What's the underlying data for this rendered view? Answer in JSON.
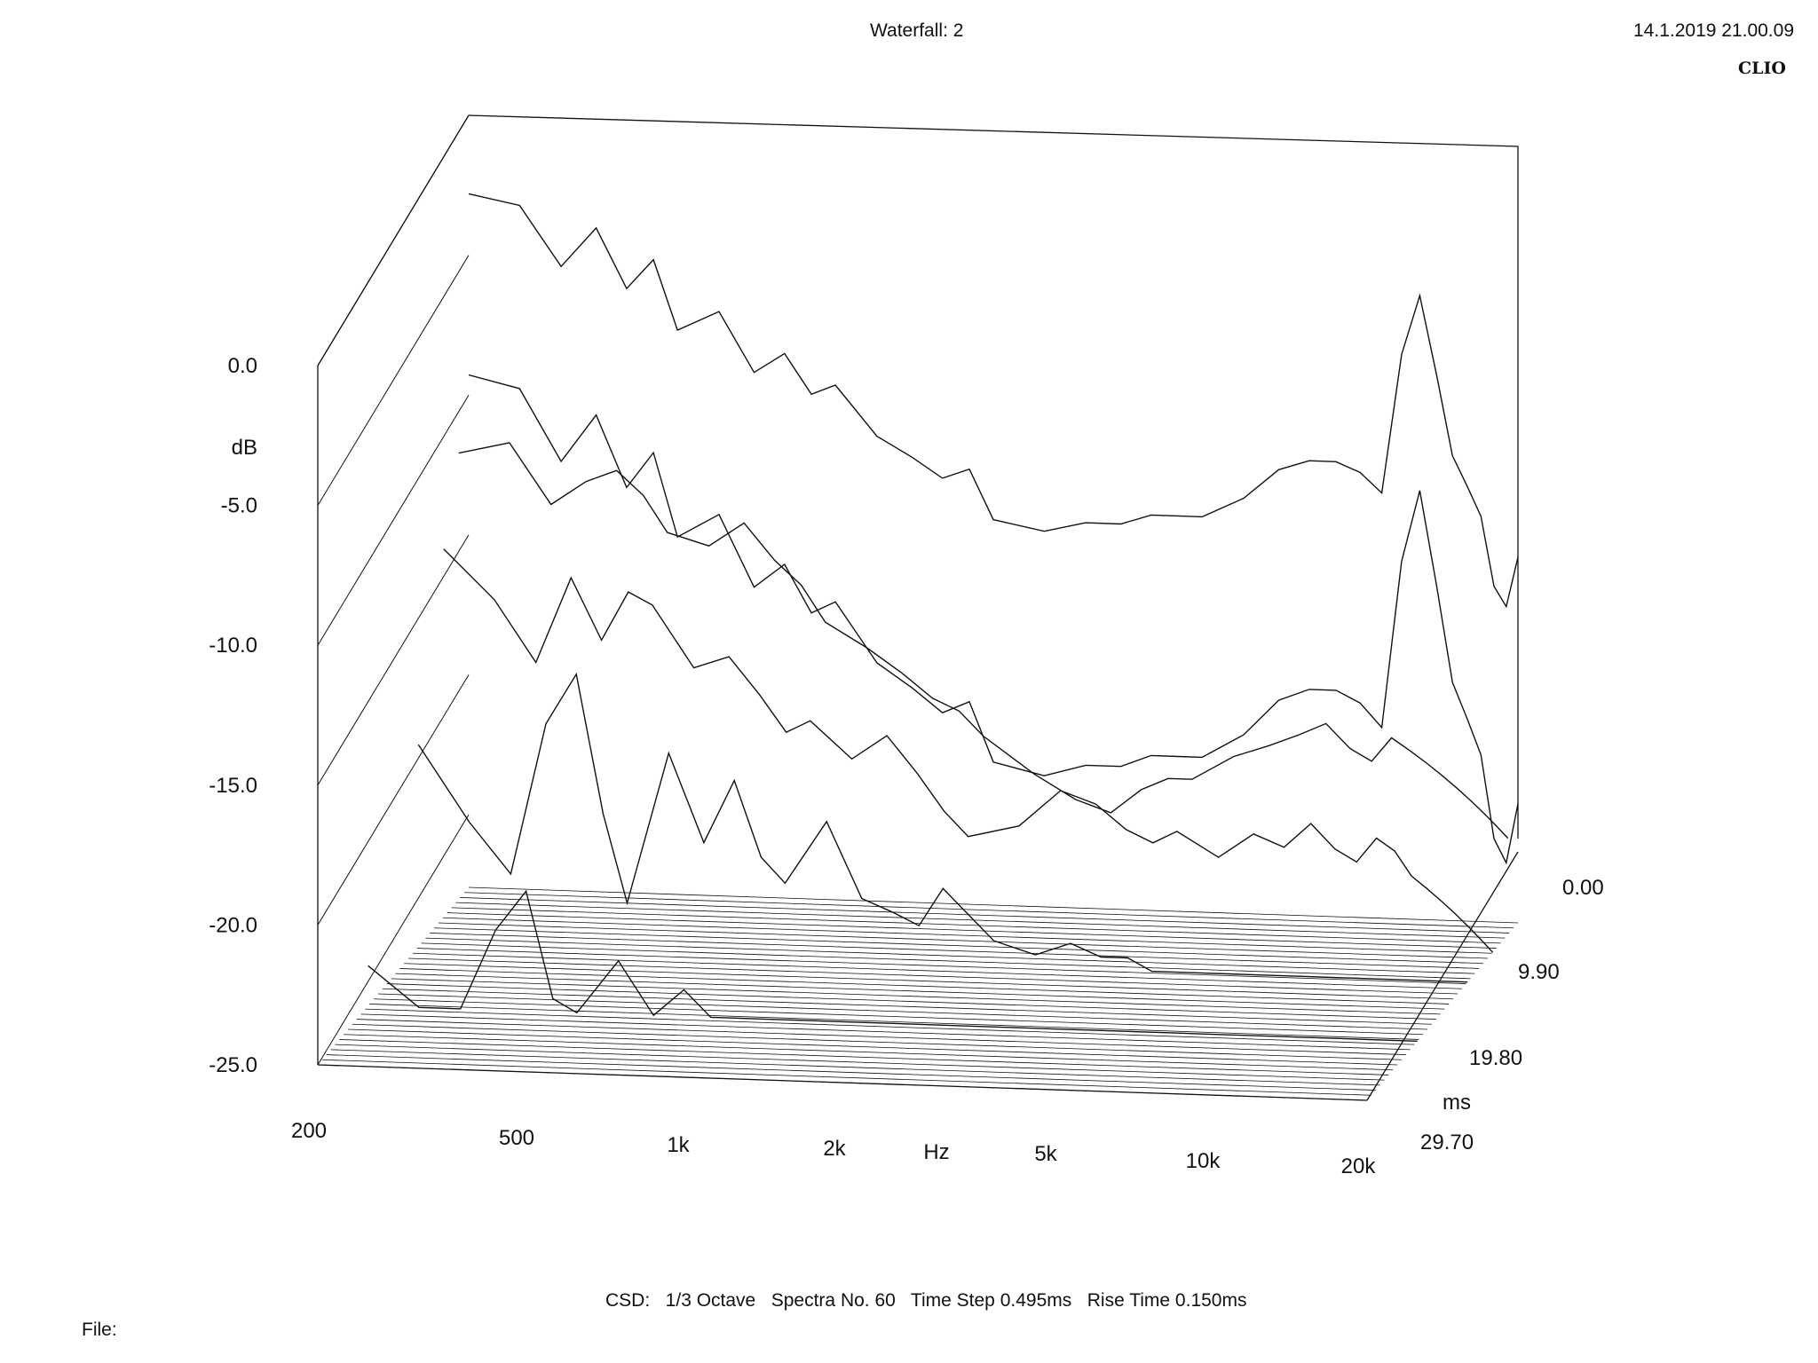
{
  "header": {
    "title": "Waterfall: 2",
    "timestamp": "14.1.2019 21.00.09",
    "brand": "CLIO"
  },
  "footer": {
    "params": "CSD:   1/3 Octave   Spectra No. 60   Time Step 0.495ms   Rise Time 0.150ms",
    "file_label": "File:"
  },
  "chart_data": {
    "type": "waterfall",
    "title": "Waterfall: 2",
    "xlabel": "Hz",
    "ylabel": "dB",
    "zlabel": "ms",
    "x_scale": "log",
    "xlim": [
      200,
      20000
    ],
    "ylim": [
      -25,
      0
    ],
    "zlim": [
      0,
      29.7
    ],
    "x_ticks": [
      "200",
      "500",
      "1k",
      "2k",
      "5k",
      "10k",
      "20k"
    ],
    "y_ticks": [
      "0.0",
      "-5.0",
      "-10.0",
      "-15.0",
      "-20.0",
      "-25.0"
    ],
    "z_ticks": [
      "0.00",
      "9.90",
      "19.80",
      "29.70"
    ],
    "method": "CSD",
    "smoothing": "1/3 Octave",
    "spectra_count": 60,
    "time_step_ms": 0.495,
    "rise_time_ms": 0.15,
    "line_color": "#111111",
    "background": "#ffffff",
    "spectra": [
      {
        "t_ms": 0.0,
        "freq": [
          200,
          250,
          300,
          350,
          400,
          450,
          500,
          600,
          700,
          800,
          900,
          1000,
          1200,
          1400,
          1600,
          1800,
          2000,
          2500,
          3000,
          3500,
          4000,
          4500,
          5000,
          6000,
          7000,
          8000,
          9000,
          10000,
          11000,
          12000,
          13000,
          14000,
          15000,
          16000,
          17000,
          18000,
          19000,
          20000
        ],
        "db": [
          -3.5,
          -4.0,
          -7.0,
          -5.0,
          -8.0,
          -6.5,
          -10.0,
          -9.0,
          -12.0,
          -11.0,
          -13.0,
          -12.5,
          -15.0,
          -16.0,
          -17.0,
          -16.5,
          -19.0,
          -19.5,
          -19.0,
          -19.0,
          -18.5,
          -18.5,
          -18.5,
          -17.5,
          -16.0,
          -15.5,
          -15.5,
          -16.0,
          -17.0,
          -10.0,
          -7.0,
          -11.0,
          -15.0,
          -16.5,
          -18.0,
          -21.5,
          -22.5,
          -20.0
        ]
      },
      {
        "t_ms": 1.98,
        "freq": [
          200,
          250,
          300,
          350,
          400,
          450,
          500,
          600,
          700,
          800,
          900,
          1000,
          1200,
          1400,
          1600,
          1800,
          2000,
          2500,
          3000,
          3500,
          4000,
          4500,
          5000,
          6000,
          7000,
          8000,
          9000,
          10000,
          11000,
          12000,
          13000,
          14000,
          15000,
          16000,
          17000,
          18000,
          19000,
          20000
        ],
        "db": [
          -6.5,
          -6.0,
          -8.5,
          -7.5,
          -7.0,
          -8.0,
          -9.5,
          -10.0,
          -9.0,
          -10.5,
          -11.5,
          -13.0,
          -14.0,
          -15.0,
          -16.0,
          -16.5,
          -17.5,
          -19.0,
          -20.0,
          -20.5,
          -19.5,
          -19.0,
          -19.0,
          -18.0,
          -17.5,
          -17.0,
          -16.5,
          -17.5,
          -18.0,
          -17.0,
          -17.5,
          -18.0,
          -18.5,
          -19.0,
          -19.5,
          -20.0,
          -20.5,
          -21.0
        ]
      },
      {
        "t_ms": 4.95,
        "freq": [
          200,
          250,
          300,
          350,
          400,
          450,
          500,
          600,
          700,
          800,
          900,
          1000,
          1200,
          1400,
          1600,
          1800,
          2000,
          2500,
          3000,
          3500,
          4000,
          4500,
          5000,
          6000,
          7000,
          8000,
          9000,
          10000,
          11000,
          12000,
          13000,
          14000,
          15000,
          16000,
          17000,
          18000,
          19000,
          20000
        ],
        "db": [
          -10.0,
          -12.0,
          -14.5,
          -11.0,
          -13.5,
          -11.5,
          -12.0,
          -14.5,
          -14.0,
          -15.5,
          -17.0,
          -16.5,
          -18.0,
          -17.0,
          -18.5,
          -20.0,
          -21.0,
          -20.5,
          -19.0,
          -19.5,
          -20.5,
          -21.0,
          -20.5,
          -21.5,
          -20.5,
          -21.0,
          -20.0,
          -21.0,
          -21.5,
          -20.5,
          -21.0,
          -22.0,
          -22.5,
          -23.0,
          -23.5,
          -24.0,
          -24.5,
          -25.0
        ]
      },
      {
        "t_ms": 9.9,
        "freq": [
          200,
          250,
          300,
          350,
          400,
          450,
          500,
          600,
          700,
          800,
          900,
          1000,
          1200,
          1400,
          1600,
          1800,
          2000,
          2500,
          3000,
          3500,
          4000,
          4500,
          5000,
          6000,
          7000,
          8000,
          9000,
          10000,
          11000,
          12000,
          13000,
          14000,
          15000,
          16000,
          17000,
          18000,
          19000,
          20000
        ],
        "db": [
          -17.0,
          -20.0,
          -22.0,
          -16.0,
          -14.0,
          -19.5,
          -23.0,
          -17.0,
          -20.5,
          -18.0,
          -21.0,
          -22.0,
          -19.5,
          -22.5,
          -23.0,
          -23.5,
          -22.0,
          -24.0,
          -24.5,
          -24.0,
          -24.5,
          -24.5,
          -25.0,
          -25.0,
          -25.0,
          -25.0,
          -25.0,
          -25.0,
          -25.0,
          -25.0,
          -25.0,
          -25.0,
          -25.0,
          -25.0,
          -25.0,
          -25.0,
          -25.0,
          -25.0
        ]
      },
      {
        "t_ms": 19.8,
        "freq": [
          200,
          250,
          300,
          350,
          400,
          450,
          500,
          600,
          700,
          800,
          900,
          1000,
          1200,
          1400,
          1600,
          1800,
          2000,
          2500,
          3000,
          3500,
          4000,
          4500,
          5000,
          6000,
          7000,
          8000,
          9000,
          10000,
          11000,
          12000,
          13000,
          14000,
          15000,
          16000,
          17000,
          18000,
          19000,
          20000
        ],
        "db": [
          -23.5,
          -25.0,
          -25.0,
          -22.0,
          -20.5,
          -24.5,
          -25.0,
          -23.0,
          -25.0,
          -24.0,
          -25.0,
          -25.0,
          -25.0,
          -25.0,
          -25.0,
          -25.0,
          -25.0,
          -25.0,
          -25.0,
          -25.0,
          -25.0,
          -25.0,
          -25.0,
          -25.0,
          -25.0,
          -25.0,
          -25.0,
          -25.0,
          -25.0,
          -25.0,
          -25.0,
          -25.0,
          -25.0,
          -25.0,
          -25.0,
          -25.0,
          -25.0,
          -25.0
        ]
      }
    ]
  }
}
